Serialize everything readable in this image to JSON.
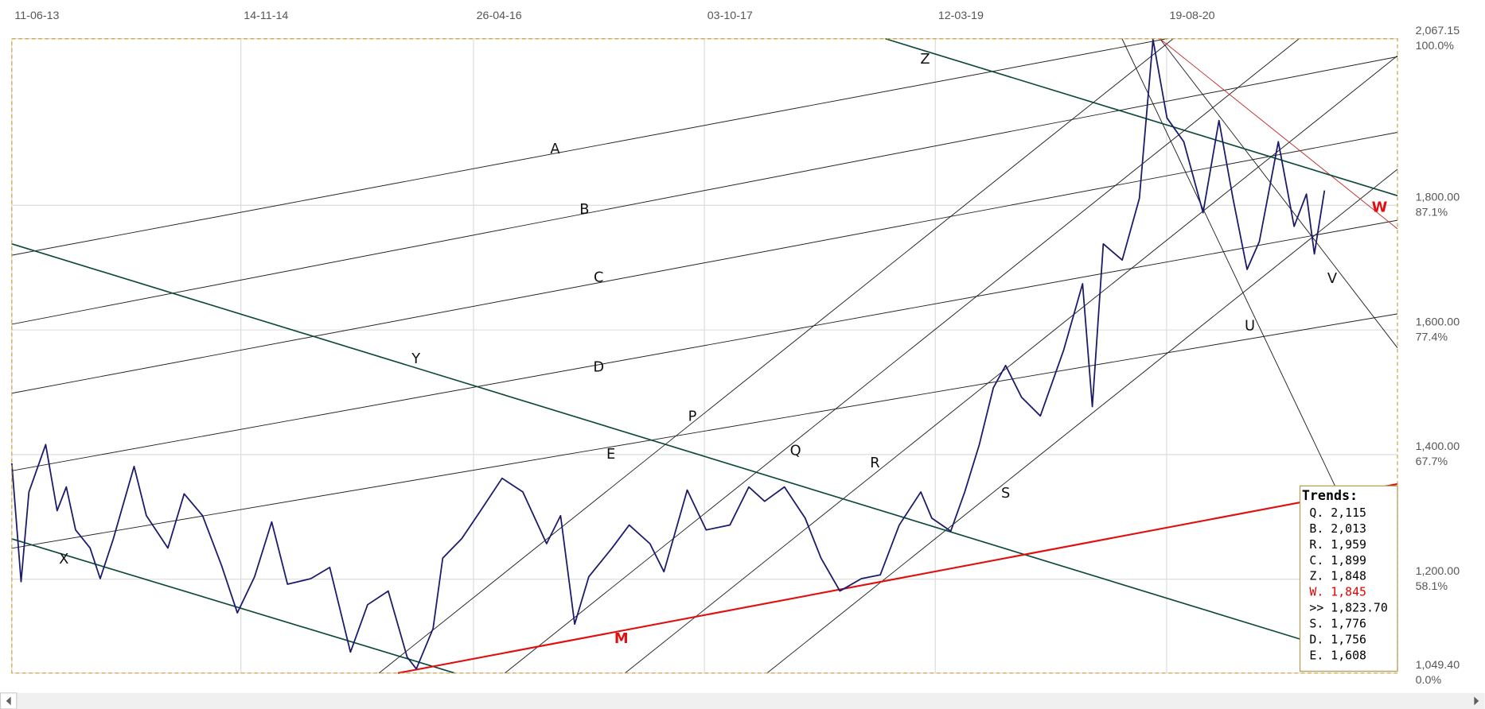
{
  "chart_data": {
    "type": "line",
    "x": [
      "11-06-13",
      "02-07-13",
      "20-07-13",
      "27-08-13",
      "22-09-13",
      "13-10-13",
      "03-11-13",
      "06-12-13",
      "29-12-13",
      "28-01-14",
      "16-03-14",
      "13-04-14",
      "01-06-14",
      "08-07-14",
      "19-08-14",
      "01-10-14",
      "06-11-14",
      "15-12-14",
      "23-01-15",
      "28-02-15",
      "22-04-15",
      "04-06-15",
      "21-07-15",
      "29-08-15",
      "15-10-15",
      "27-11-15",
      "18-12-15",
      "25-01-16",
      "16-02-16",
      "30-03-16",
      "12-05-16",
      "30-06-16",
      "16-08-16",
      "09-10-16",
      "10-11-16",
      "12-12-16",
      "13-01-17",
      "07-03-17",
      "15-04-17",
      "01-06-17",
      "03-07-17",
      "25-08-17",
      "07-10-17",
      "30-11-17",
      "12-01-18",
      "17-02-18",
      "03-04-18",
      "20-05-18",
      "25-06-18",
      "07-08-18",
      "25-09-18",
      "07-11-18",
      "20-12-18",
      "07-02-19",
      "04-03-19",
      "16-04-19",
      "18-05-19",
      "20-06-19",
      "22-07-19",
      "19-08-19",
      "24-09-19",
      "06-11-19",
      "29-12-19",
      "10-02-20",
      "03-03-20",
      "28-03-20",
      "10-05-20",
      "18-06-20",
      "19-07-20",
      "20-08-20",
      "27-09-20",
      "10-11-20",
      "16-12-20",
      "17-01-21",
      "18-02-21",
      "18-03-21",
      "30-04-21",
      "05-06-21",
      "03-07-21",
      "21-07-21",
      "13-08-21"
    ],
    "values": [
      1386,
      1196,
      1340,
      1416,
      1310,
      1348,
      1279,
      1250,
      1201,
      1265,
      1381,
      1302,
      1250,
      1337,
      1302,
      1222,
      1146,
      1204,
      1292,
      1192,
      1201,
      1219,
      1083,
      1159,
      1181,
      1075,
      1056,
      1121,
      1234,
      1265,
      1310,
      1362,
      1340,
      1257,
      1302,
      1128,
      1204,
      1250,
      1287,
      1257,
      1212,
      1343,
      1279,
      1287,
      1348,
      1325,
      1348,
      1298,
      1234,
      1181,
      1201,
      1207,
      1287,
      1340,
      1298,
      1277,
      1340,
      1416,
      1507,
      1543,
      1492,
      1462,
      1568,
      1674,
      1477,
      1738,
      1712,
      1811,
      2066,
      1940,
      1902,
      1788,
      1936,
      1811,
      1697,
      1742,
      1902,
      1766,
      1818,
      1722,
      1823.7
    ],
    "color": "#1b1b6b",
    "xlim": [
      "11-06-13",
      "26-01-22"
    ],
    "xticks": [
      "11-06-13",
      "14-11-14",
      "26-04-16",
      "03-10-17",
      "12-03-19",
      "19-08-20"
    ],
    "ylim": [
      1049.4,
      2067.15
    ],
    "yticks": [
      {
        "value": 1049.4,
        "label": "1,049.40"
      },
      {
        "value": 1200,
        "label": "1,200.00"
      },
      {
        "value": 1400,
        "label": "1,400.00"
      },
      {
        "value": 1600,
        "label": "1,600.00"
      },
      {
        "value": 1800,
        "label": "1,800.00"
      },
      {
        "value": 2067.15,
        "label": "2,067.15"
      }
    ],
    "percent_labels": [
      "0.0%",
      "58.1%",
      "67.7%",
      "77.4%",
      "87.1%",
      "100.0%"
    ],
    "grid": true,
    "trend_labels": [
      "A",
      "B",
      "C",
      "D",
      "E",
      "P",
      "Q",
      "R",
      "S",
      "U",
      "V",
      "W",
      "X",
      "Y",
      "Z",
      "M"
    ],
    "trends": {
      "title": "Trends:",
      "rows": [
        {
          "text": "Q. 2,115",
          "color": "#000000"
        },
        {
          "text": "B. 2,013",
          "color": "#000000"
        },
        {
          "text": "R. 1,959",
          "color": "#000000"
        },
        {
          "text": "C. 1,899",
          "color": "#000000"
        },
        {
          "text": "Z. 1,848",
          "color": "#000000"
        },
        {
          "text": "W. 1,845",
          "color": "#e00000"
        },
        {
          "text": ">> 1,823.70",
          "color": "#000000"
        },
        {
          "text": "S. 1,776",
          "color": "#000000"
        },
        {
          "text": "D. 1,756",
          "color": "#000000"
        },
        {
          "text": "E. 1,608",
          "color": "#000000"
        }
      ]
    }
  }
}
